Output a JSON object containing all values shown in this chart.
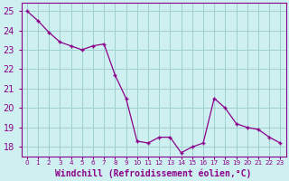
{
  "x": [
    0,
    1,
    2,
    3,
    4,
    5,
    6,
    7,
    8,
    9,
    10,
    11,
    12,
    13,
    14,
    15,
    16,
    17,
    18,
    19,
    20,
    21,
    22,
    23
  ],
  "y": [
    25.0,
    24.5,
    23.9,
    23.4,
    23.2,
    23.0,
    23.2,
    23.3,
    21.7,
    20.5,
    18.3,
    18.2,
    18.5,
    18.5,
    17.7,
    18.0,
    18.2,
    20.5,
    20.0,
    19.2,
    19.0,
    18.9,
    18.5,
    18.2
  ],
  "xlabel": "Windchill (Refroidissement éolien,°C)",
  "ylim": [
    17.5,
    25.4
  ],
  "xlim": [
    -0.5,
    23.5
  ],
  "yticks": [
    18,
    19,
    20,
    21,
    22,
    23,
    24,
    25
  ],
  "xticks": [
    0,
    1,
    2,
    3,
    4,
    5,
    6,
    7,
    8,
    9,
    10,
    11,
    12,
    13,
    14,
    15,
    16,
    17,
    18,
    19,
    20,
    21,
    22,
    23
  ],
  "xtick_labels": [
    "0",
    "1",
    "2",
    "3",
    "4",
    "5",
    "6",
    "7",
    "8",
    "9",
    "10",
    "11",
    "12",
    "13",
    "14",
    "15",
    "16",
    "17",
    "18",
    "19",
    "20",
    "21",
    "22",
    "23"
  ],
  "line_color": "#8b008b",
  "marker_color": "#8b008b",
  "bg_color": "#cff0f0",
  "grid_color": "#a0d0d0",
  "axis_color": "#8b008b",
  "xlabel_color": "#8b008b",
  "tick_color": "#8b008b",
  "ytick_fontsize": 7,
  "xtick_fontsize": 5.2,
  "xlabel_fontsize": 7
}
